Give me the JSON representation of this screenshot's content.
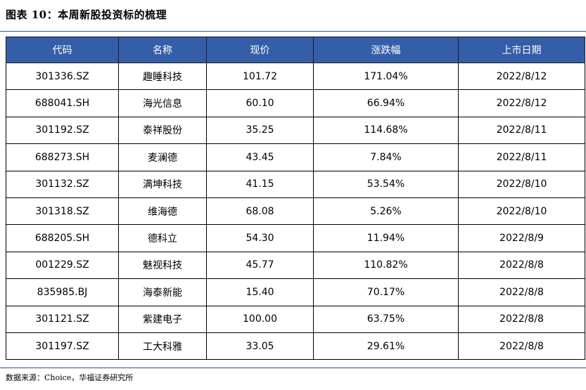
{
  "title": "图表 10：本周新股投资标的梳理",
  "table": {
    "headers": [
      "代码",
      "名称",
      "现价",
      "涨跌幅",
      "上市日期"
    ],
    "rows": [
      [
        "301336.SZ",
        "趣睡科技",
        "101.72",
        "171.04%",
        "2022/8/12"
      ],
      [
        "688041.SH",
        "海光信息",
        "60.10",
        "66.94%",
        "2022/8/12"
      ],
      [
        "301192.SZ",
        "泰祥股份",
        "35.25",
        "114.68%",
        "2022/8/11"
      ],
      [
        "688273.SH",
        "麦澜德",
        "43.45",
        "7.84%",
        "2022/8/11"
      ],
      [
        "301132.SZ",
        "满坤科技",
        "41.15",
        "53.54%",
        "2022/8/10"
      ],
      [
        "301318.SZ",
        "维海德",
        "68.08",
        "5.26%",
        "2022/8/10"
      ],
      [
        "688205.SH",
        "德科立",
        "54.30",
        "11.94%",
        "2022/8/9"
      ],
      [
        "001229.SZ",
        "魅视科技",
        "45.77",
        "110.82%",
        "2022/8/8"
      ],
      [
        "835985.BJ",
        "海泰新能",
        "15.40",
        "70.17%",
        "2022/8/8"
      ],
      [
        "301121.SZ",
        "紫建电子",
        "100.00",
        "63.75%",
        "2022/8/8"
      ],
      [
        "301197.SZ",
        "工大科雅",
        "33.05",
        "29.61%",
        "2022/8/8"
      ]
    ]
  },
  "source": "数据来源：Choice，华福证券研究所",
  "colors": {
    "header_bg": "#355ea8",
    "rule": "#2b4f8e"
  }
}
